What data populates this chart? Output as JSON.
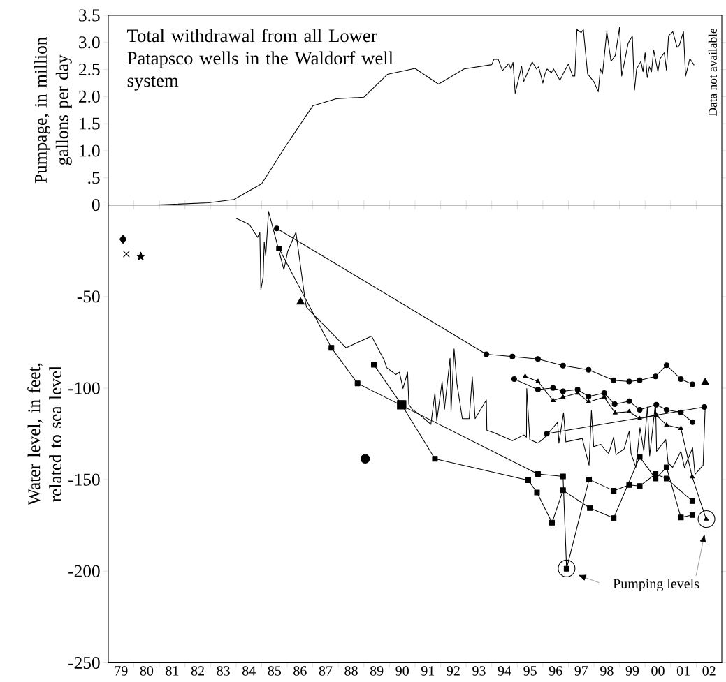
{
  "chart_data": [
    {
      "type": "line",
      "color": "#000000",
      "ylabel": "Pumpage, in million gallons per day",
      "annotations": [
        "Total withdrawal from all Lower Patapsco wells in the Waldorf well system",
        "Data not available"
      ],
      "xlim": [
        "1979",
        "2003"
      ],
      "ylim": [
        0,
        3.5
      ],
      "yticks": [
        0,
        {
          "value": 0.5,
          "label": ".5"
        },
        {
          "value": 1,
          "label": "1.0"
        },
        1.5,
        {
          "value": 2,
          "label": "2.0"
        },
        2.5,
        {
          "value": 3,
          "label": "3.0"
        },
        3.5
      ],
      "tick_labels": "y",
      "x": [
        "1980-12",
        "1982-12",
        "1983-12",
        "1985-01",
        "1985-12",
        "1987-01",
        "1987-12",
        "1989-01",
        "1989-12",
        "1991-01",
        "1991-12",
        "1992-12",
        "1994-01",
        "1994-02",
        "1994-04",
        "1994-06",
        "1994-09",
        "1994-10",
        "1994-11",
        "1994-12",
        "1995-03",
        "1995-04",
        "1995-08",
        "1995-10",
        "1995-11",
        "1996-01",
        "1996-02",
        "1996-03",
        "1996-05",
        "1996-06",
        "1996-09",
        "1996-11",
        "1997-01",
        "1997-03",
        "1997-04",
        "1997-05",
        "1997-07",
        "1997-08",
        "1997-10",
        "1998-01",
        "1998-03",
        "1998-04",
        "1998-05",
        "1998-07",
        "1998-09",
        "1998-11",
        "1999-01",
        "1999-02",
        "1999-05",
        "1999-07",
        "1999-08",
        "1999-09",
        "1999-11",
        "1999-12",
        "2000-01",
        "2000-02",
        "2000-03",
        "2000-04",
        "2000-05",
        "2000-07",
        "2000-08",
        "2000-10",
        "2000-11",
        "2000-12",
        "2001-02",
        "2001-04",
        "2001-05",
        "2001-07",
        "2001-08",
        "2001-10",
        "2001-12"
      ],
      "values": [
        0.0,
        0.04,
        0.1,
        0.39,
        1.07,
        1.83,
        1.96,
        1.99,
        2.41,
        2.52,
        2.23,
        2.51,
        2.59,
        2.69,
        2.69,
        2.48,
        2.61,
        2.51,
        2.63,
        2.06,
        2.56,
        2.28,
        2.64,
        2.51,
        2.55,
        2.25,
        2.42,
        2.51,
        2.44,
        2.51,
        2.3,
        2.46,
        2.6,
        2.38,
        2.38,
        3.24,
        3.18,
        3.24,
        2.42,
        2.27,
        2.09,
        2.51,
        2.42,
        3.2,
        2.65,
        2.76,
        3.28,
        2.38,
        2.98,
        3.12,
        2.12,
        2.51,
        2.65,
        2.46,
        2.81,
        2.35,
        2.55,
        2.46,
        2.86,
        2.46,
        2.7,
        2.81,
        2.49,
        3.12,
        3.2,
        2.91,
        2.94,
        3.2,
        2.38,
        2.7,
        2.58
      ]
    },
    {
      "type": "line",
      "ylabel": "Water level, in feet, related to sea level",
      "annotations": [
        "Pumping levels"
      ],
      "xlim": [
        "1979",
        "2003"
      ],
      "xticks": [
        {
          "value": "1980",
          "label": null
        },
        {
          "value": "1981",
          "label": null
        },
        {
          "value": "1982",
          "label": null
        },
        {
          "value": "1983",
          "label": null
        },
        {
          "value": "1984",
          "label": null
        },
        {
          "value": "1985",
          "label": null
        },
        {
          "value": "1986",
          "label": null
        },
        {
          "value": "1987",
          "label": null
        },
        {
          "value": "1988",
          "label": null
        },
        {
          "value": "1989",
          "label": null
        },
        {
          "value": "1990",
          "label": null
        },
        {
          "value": "1991",
          "label": null
        },
        {
          "value": "1992",
          "label": null
        },
        {
          "value": "1993",
          "label": null
        },
        {
          "value": "1994",
          "label": null
        },
        {
          "value": "1995",
          "label": null
        },
        {
          "value": "1996",
          "label": null
        },
        {
          "value": "1997",
          "label": null
        },
        {
          "value": "1998",
          "label": null
        },
        {
          "value": "1999",
          "label": null
        },
        {
          "value": "2000",
          "label": null
        },
        {
          "value": "2001",
          "label": null
        },
        {
          "value": "2002",
          "label": null
        },
        {
          "value": "1979-07",
          "label": "79"
        },
        {
          "value": "1980-07",
          "label": "80"
        },
        {
          "value": "1981-07",
          "label": "81"
        },
        {
          "value": "1982-07",
          "label": "82"
        },
        {
          "value": "1983-07",
          "label": "83"
        },
        {
          "value": "1984-07",
          "label": "84"
        },
        {
          "value": "1985-07",
          "label": "85"
        },
        {
          "value": "1986-07",
          "label": "86"
        },
        {
          "value": "1987-07",
          "label": "87"
        },
        {
          "value": "1988-07",
          "label": "88"
        },
        {
          "value": "1989-07",
          "label": "89"
        },
        {
          "value": "1990-07",
          "label": "90"
        },
        {
          "value": "1991-07",
          "label": "91"
        },
        {
          "value": "1992-07",
          "label": "92"
        },
        {
          "value": "1993-07",
          "label": "93"
        },
        {
          "value": "1994-07",
          "label": "94"
        },
        {
          "value": "1995-07",
          "label": "95"
        },
        {
          "value": "1996-07",
          "label": "96"
        },
        {
          "value": "1997-07",
          "label": "97"
        },
        {
          "value": "1998-07",
          "label": "98"
        },
        {
          "value": "1999-07",
          "label": "99"
        },
        {
          "value": "2000-07",
          "label": "00"
        },
        {
          "value": "2001-07",
          "label": "01"
        },
        {
          "value": "2002-07",
          "label": "02"
        }
      ],
      "ylim": [
        -250,
        0
      ],
      "yticks": [
        -250,
        -200,
        -150,
        -100,
        -50
      ],
      "series": [
        {
          "type": "line",
          "color": "#000000",
          "marker": "none",
          "x": [
            "1984-01-01",
            "1984-03-27",
            "1984-07-08",
            "1984-11-03",
            "1984-12-05",
            "1984-12-20",
            "1985-01-22",
            "1985-02-07",
            "1985-02-28",
            "1985-04-08",
            "1985-11-14",
            "1986-01-08",
            "1986-05-03",
            "1986-09-13",
            "1986-10-01",
            "1988-04-19",
            "1989-04-19",
            "1989-10-19",
            "1989-11-21",
            "1990-04-01",
            "1990-05-21",
            "1990-07-11",
            "1990-09-16",
            "1990-10-04",
            "1990-11-21",
            "1991-03-16",
            "1991-08-14",
            "1991-10-11",
            "1991-11-07",
            "1992-01-22",
            "1992-02-25",
            "1992-05-14",
            "1992-05-28",
            "1992-07-11",
            "1992-08-21",
            "1992-11-07",
            "1993-02-14",
            "1993-03-27",
            "1993-05-07",
            "1993-10-15",
            "1993-10-22",
            "1994-01-29",
            "1994-10-22",
            "1995-04-04",
            "1995-05-10",
            "1995-05-14",
            "1995-06-27",
            "1995-10-22",
            "1996-01-15",
            "1996-07-29",
            "1996-08-17",
            "1996-10-22",
            "1996-11-25",
            "1997-07-15",
            "1997-10-22",
            "1997-11-25",
            "1997-12-27",
            "1998-04-08",
            "1998-05-25",
            "1998-07-29",
            "1998-10-08",
            "1998-11-10",
            "1999-03-05",
            "1999-05-17",
            "1999-06-13",
            "1999-08-21",
            "1999-10-19",
            "1999-12-13",
            "2000-02-03",
            "2000-03-05",
            "2000-05-28",
            "2000-06-13",
            "2000-10-22",
            "2000-11-25",
            "2001-01-29",
            "2001-05-25",
            "2001-07-15",
            "2001-11-10",
            "2001-12-13",
            "2002-04-08",
            "2002-05-07"
          ],
          "values": [
            -7.3,
            -8.8,
            -10.7,
            -17.7,
            -15.1,
            -46.2,
            -39.3,
            -20.2,
            -27.8,
            -3.5,
            -35.4,
            -25.3,
            -14.9,
            -51.9,
            -55.8,
            -78,
            -71.6,
            -85,
            -88.8,
            -92.6,
            -91.3,
            -100.2,
            -91.3,
            -109,
            -111.6,
            -114.8,
            -119.8,
            -102.7,
            -117.9,
            -96.4,
            -111.6,
            -83.7,
            -112.9,
            -78.6,
            -97.6,
            -116.7,
            -116.7,
            -93.8,
            -116.7,
            -106.5,
            -123,
            -124.3,
            -128.7,
            -125.6,
            -126.8,
            -100.2,
            -128.1,
            -130,
            -127.5,
            -118.6,
            -130,
            -113.5,
            -129.4,
            -127.5,
            -142.1,
            -112.2,
            -131.9,
            -130.7,
            -133.2,
            -135.7,
            -126.8,
            -136.4,
            -133.2,
            -123.6,
            -135.7,
            -143.3,
            -121.7,
            -134.5,
            -110.3,
            -137,
            -107.8,
            -134.5,
            -128.1,
            -140.8,
            -143.3,
            -134.5,
            -143.3,
            -132.6,
            -147.1,
            -142.1,
            -110.3
          ]
        },
        {
          "type": "line",
          "color": "#000000",
          "marker": "circle",
          "x": [
            "1985-08-03",
            "1993-10-15",
            "1994-10-22",
            "1995-10-22",
            "1996-10-15",
            "1997-10-15",
            "1998-10-08",
            "1999-05-17",
            "1999-10-15",
            "2000-05-28",
            "2000-11-03",
            "2001-05-25",
            "2001-11-07"
          ],
          "values": [
            -12.8,
            -81.5,
            -82.8,
            -84.1,
            -87.7,
            -90.0,
            -95.7,
            -96.4,
            -95.7,
            -93.6,
            -87.5,
            -95.1,
            -97.9
          ]
        },
        {
          "type": "line",
          "color": "#000000",
          "marker": "circle",
          "x": [
            "1994-11-18",
            "1995-10-22",
            "1996-05-25",
            "1996-10-15",
            "1997-05-10",
            "1997-10-15",
            "1998-05-25",
            "1998-10-22",
            "1999-05-17",
            "1999-10-15",
            "2000-06-09",
            "2000-11-03",
            "2001-05-25",
            "2001-11-07"
          ],
          "values": [
            -95.1,
            -100.8,
            -99.9,
            -101.7,
            -100.8,
            -104.6,
            -102.7,
            -108.8,
            -107.2,
            -111.8,
            -109.1,
            -111.8,
            -113.3,
            -118.6
          ]
        },
        {
          "type": "line",
          "color": "#000000",
          "marker": "triangle",
          "x": [
            "1995-04-22",
            "1995-10-22",
            "1996-05-25",
            "1996-10-15",
            "1997-05-10",
            "1997-10-15",
            "1998-05-25",
            "1998-10-29",
            "1999-05-17",
            "1999-10-15",
            "2000-06-09",
            "2000-11-03",
            "2001-05-25",
            "2001-11-03",
            "2002-05-21"
          ],
          "values": [
            -93.6,
            -96.4,
            -106.8,
            -105,
            -102.7,
            -107.5,
            -105,
            -113.5,
            -112.9,
            -116.7,
            -114.8,
            -120.2,
            -122,
            -148.4,
            -171.5
          ]
        },
        {
          "type": "line",
          "color": "#000000",
          "marker": "circle",
          "x": [
            "1996-02-28",
            "2002-04-26"
          ],
          "values": [
            -124.9,
            -110.3
          ]
        },
        {
          "type": "line",
          "color": "#000000",
          "marker": "square",
          "x": [
            "1985-09-05",
            "1987-09-23",
            "1988-10-01",
            "1995-10-22",
            "1996-10-15",
            "1996-12-05",
            "1997-10-22",
            "1998-10-08",
            "1999-05-17",
            "1999-10-15",
            "2000-05-28",
            "2000-11-03",
            "2001-11-07"
          ],
          "values": [
            -23.8,
            -78,
            -97.4,
            -146.9,
            -148.2,
            -198.6,
            -149.9,
            -156,
            -152.9,
            -153.5,
            -146.9,
            -149.4,
            -161.7
          ]
        },
        {
          "type": "line",
          "color": "#000000",
          "marker": "square",
          "x": [
            "1989-05-21",
            "1990-06-23",
            "1991-10-11",
            "1995-06-05",
            "1995-10-08",
            "1996-05-10",
            "1996-10-15",
            "1997-11-03",
            "1998-10-08",
            "1999-10-15",
            "2000-05-28",
            "2000-11-03",
            "2001-05-25",
            "2001-11-07"
          ],
          "values": [
            -87.2,
            -109.1,
            -138.6,
            -150.3,
            -157,
            -173.5,
            -155.8,
            -165.5,
            -171,
            -137.6,
            -149.4,
            -143.3,
            -170.6,
            -169.3
          ]
        },
        {
          "type": "scatter",
          "color": "#000000",
          "marker": "square",
          "x": [
            "1990-06-23"
          ],
          "values": [
            -109.1
          ]
        },
        {
          "type": "scatter",
          "color": "#000000",
          "marker": "triangle",
          "x": [
            "1986-07-08"
          ],
          "values": [
            -53.0
          ]
        },
        {
          "type": "scatter",
          "color": "#000000",
          "marker": "circle",
          "x": [
            "1989-01-19"
          ],
          "values": [
            -138.6
          ]
        },
        {
          "type": "scatter",
          "color": "#000000",
          "marker": "triangle",
          "x": [
            "2002-05-07"
          ],
          "values": [
            -97.0
          ]
        },
        {
          "type": "scatter",
          "color": "#000000",
          "marker": "diamond",
          "x": [
            "1979-07-29"
          ],
          "values": [
            -18.7
          ]
        },
        {
          "type": "scatter",
          "color": "#000000",
          "marker": "cross",
          "x": [
            "1979-09-16"
          ],
          "values": [
            -26.8
          ]
        },
        {
          "type": "scatter",
          "color": "#000000",
          "marker": "star",
          "x": [
            "1980-04-08"
          ],
          "values": [
            -28.1
          ]
        }
      ]
    }
  ]
}
